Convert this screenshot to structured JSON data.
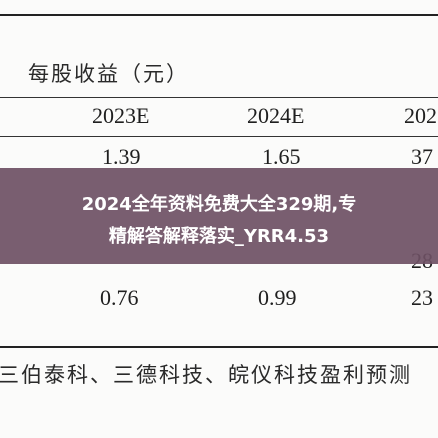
{
  "table": {
    "header_label": "每股收益（元）",
    "columns": [
      "2023E",
      "2024E",
      "202"
    ],
    "rows": [
      [
        "1.39",
        "1.65",
        "37"
      ],
      [
        "",
        "",
        "28"
      ],
      [
        "0.76",
        "0.99",
        "23"
      ]
    ],
    "footer": "三伯泰科、三德科技、皖仪科技盈利预测"
  },
  "overlay": {
    "line1": "2024全年资料免费大全329期,专",
    "line2": "精解答解释落实_YRR4.53",
    "background": "#6e5064"
  }
}
